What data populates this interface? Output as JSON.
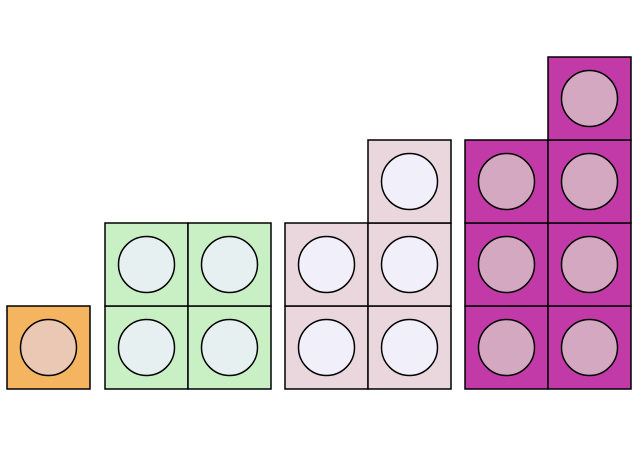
{
  "diagram": {
    "kind": "linking-cubes",
    "groups": [
      {
        "name": "group-1",
        "count": 1,
        "square_color": "#f5b45f",
        "circle_color": "#ebc8b4",
        "stacks": [
          1
        ]
      },
      {
        "name": "group-2",
        "count": 4,
        "square_color": "#c9f0c5",
        "circle_color": "#e6f0f0",
        "stacks": [
          2,
          2
        ]
      },
      {
        "name": "group-3",
        "count": 5,
        "square_color": "#ead7dd",
        "circle_color": "#f1effa",
        "stacks": [
          2,
          3
        ]
      },
      {
        "name": "group-4",
        "count": 7,
        "square_color": "#c23aa8",
        "circle_color": "#d4a8c0",
        "stacks": [
          3,
          4
        ]
      }
    ],
    "outline_color": "#000000"
  }
}
